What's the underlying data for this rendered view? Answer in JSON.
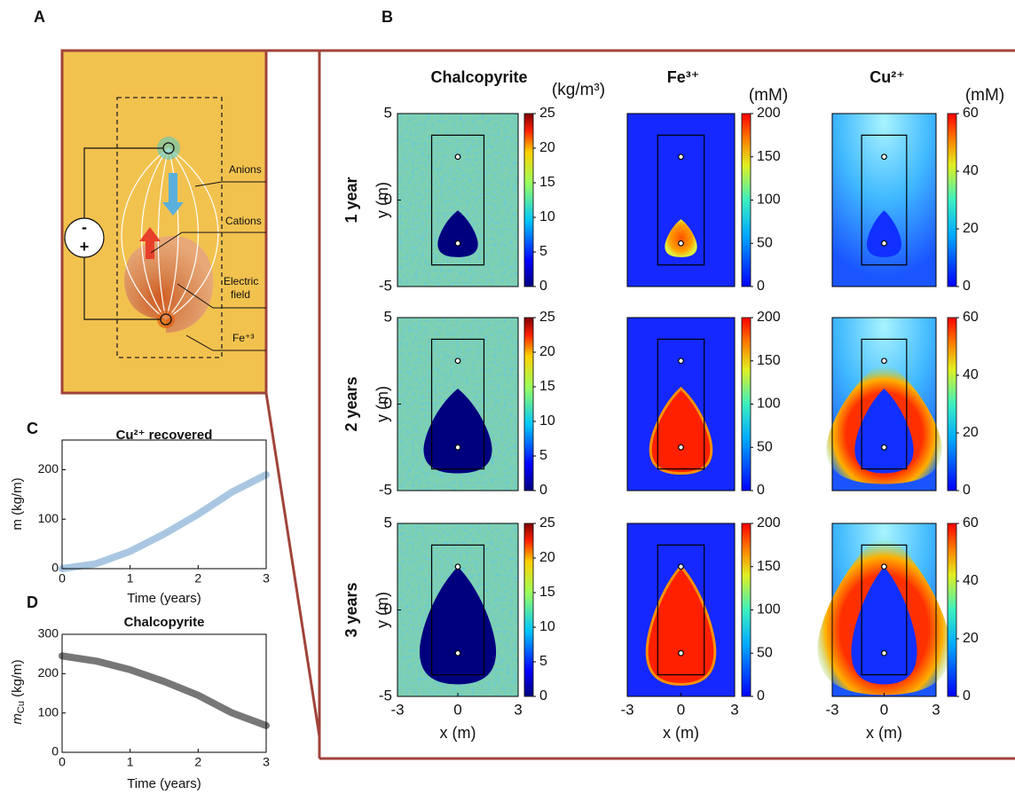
{
  "panel_labels": [
    "A",
    "B",
    "C",
    "D"
  ],
  "diagram": {
    "battery": {
      "minus": "-",
      "plus": "+"
    },
    "labels": [
      "Anions",
      "Cations",
      "Electric",
      "field",
      "Fe⁺³"
    ]
  },
  "heatmaps": {
    "columns": [
      {
        "title": "Chalcopyrite",
        "unit": "(kg/m³)",
        "clim": [
          0,
          25
        ],
        "ticks": [
          0,
          5,
          10,
          15,
          20,
          25
        ]
      },
      {
        "title": "Fe³⁺",
        "unit": "(mM)",
        "clim": [
          0,
          200
        ],
        "ticks": [
          0,
          50,
          100,
          150,
          200
        ]
      },
      {
        "title": "Cu²⁺",
        "unit": "(mM)",
        "clim": [
          0,
          60
        ],
        "ticks": [
          0,
          20,
          40,
          60
        ]
      }
    ],
    "rows": [
      "1 year",
      "2 years",
      "3 years"
    ],
    "x_label": "x (m)",
    "y_label": "y (m)",
    "xlim": [
      -3,
      3
    ],
    "xticks": [
      -3,
      0,
      3
    ],
    "ylim": [
      -5,
      5
    ],
    "yticks": [
      -5,
      0,
      5
    ]
  },
  "chart_data": [
    {
      "type": "line",
      "title": "Cu²⁺ recovered",
      "x_label": "Time (years)",
      "y_label": "m (kg/m)",
      "x": [
        0,
        0.5,
        1,
        1.5,
        2,
        2.5,
        3
      ],
      "values": [
        0,
        10,
        35,
        70,
        110,
        155,
        190
      ],
      "color": "#a9c7e2",
      "xlim": [
        0,
        3
      ],
      "xticks": [
        0,
        1,
        2,
        3
      ],
      "ylim": [
        0,
        260
      ],
      "yticks": [
        0,
        100,
        200
      ]
    },
    {
      "type": "line",
      "title": "Chalcopyrite",
      "x_label": "Time (years)",
      "y_label": {
        "symbol": "m",
        "subscript": "Cu",
        "unit": " (kg/m)"
      },
      "x": [
        0,
        0.5,
        1,
        1.5,
        2,
        2.5,
        3
      ],
      "values": [
        245,
        232,
        210,
        180,
        145,
        100,
        68
      ],
      "color": "#777777",
      "xlim": [
        0,
        3
      ],
      "xticks": [
        0,
        1,
        2,
        3
      ],
      "ylim": [
        0,
        300
      ],
      "yticks": [
        0,
        100,
        200,
        300
      ]
    }
  ]
}
